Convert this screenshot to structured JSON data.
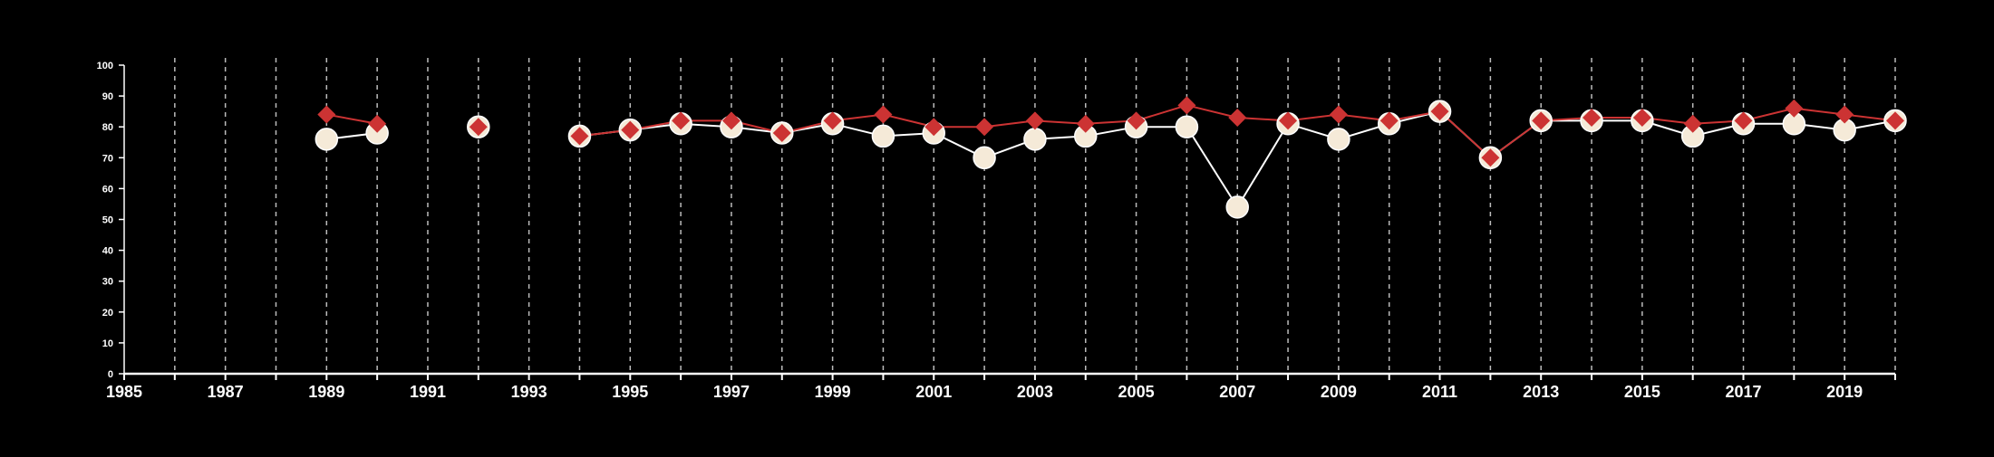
{
  "chart_data": {
    "type": "line",
    "title": "",
    "xlabel": "",
    "ylabel": "",
    "xlim": [
      1985,
      2020
    ],
    "ylim": [
      0,
      100
    ],
    "yticks": [
      0,
      10,
      20,
      30,
      40,
      50,
      60,
      70,
      80,
      90,
      100
    ],
    "xticks_labeled": [
      1985,
      1987,
      1989,
      1991,
      1993,
      1995,
      1997,
      1999,
      2001,
      2003,
      2005,
      2007,
      2009,
      2011,
      2013,
      2015,
      2017,
      2019
    ],
    "xticks_minor": [
      1986,
      1988,
      1990,
      1992,
      1994,
      1996,
      1998,
      2000,
      2002,
      2004,
      2006,
      2008,
      2010,
      2012,
      2014,
      2016,
      2018,
      2020
    ],
    "grid": "vertical dashed at every year",
    "legend": "none",
    "series": [
      {
        "marker": "circle",
        "color": "#f5ead8",
        "line_color": "#ffffff",
        "points": [
          [
            1989,
            76
          ],
          [
            1990,
            78
          ],
          [
            1992,
            80
          ],
          [
            1994,
            77
          ],
          [
            1995,
            79
          ],
          [
            1996,
            81
          ],
          [
            1997,
            80
          ],
          [
            1998,
            78
          ],
          [
            1999,
            81
          ],
          [
            2000,
            77
          ],
          [
            2001,
            78
          ],
          [
            2002,
            70
          ],
          [
            2003,
            76
          ],
          [
            2004,
            77
          ],
          [
            2005,
            80
          ],
          [
            2006,
            80
          ],
          [
            2007,
            54
          ],
          [
            2008,
            81
          ],
          [
            2009,
            76
          ],
          [
            2010,
            81
          ],
          [
            2011,
            85
          ],
          [
            2012,
            70
          ],
          [
            2013,
            82
          ],
          [
            2014,
            82
          ],
          [
            2015,
            82
          ],
          [
            2016,
            77
          ],
          [
            2017,
            81
          ],
          [
            2018,
            81
          ],
          [
            2019,
            79
          ],
          [
            2020,
            82
          ]
        ]
      },
      {
        "marker": "diamond",
        "color": "#cc3333",
        "line_color": "#cc3333",
        "points": [
          [
            1989,
            84
          ],
          [
            1990,
            81
          ],
          [
            1992,
            80
          ],
          [
            1994,
            77
          ],
          [
            1995,
            79
          ],
          [
            1996,
            82
          ],
          [
            1997,
            82
          ],
          [
            1998,
            78
          ],
          [
            1999,
            82
          ],
          [
            2000,
            84
          ],
          [
            2001,
            80
          ],
          [
            2002,
            80
          ],
          [
            2003,
            82
          ],
          [
            2004,
            81
          ],
          [
            2005,
            82
          ],
          [
            2006,
            87
          ],
          [
            2007,
            83
          ],
          [
            2008,
            82
          ],
          [
            2009,
            84
          ],
          [
            2010,
            82
          ],
          [
            2011,
            85
          ],
          [
            2012,
            70
          ],
          [
            2013,
            82
          ],
          [
            2014,
            83
          ],
          [
            2015,
            83
          ],
          [
            2016,
            81
          ],
          [
            2017,
            82
          ],
          [
            2018,
            86
          ],
          [
            2019,
            84
          ],
          [
            2020,
            82
          ]
        ]
      }
    ]
  }
}
